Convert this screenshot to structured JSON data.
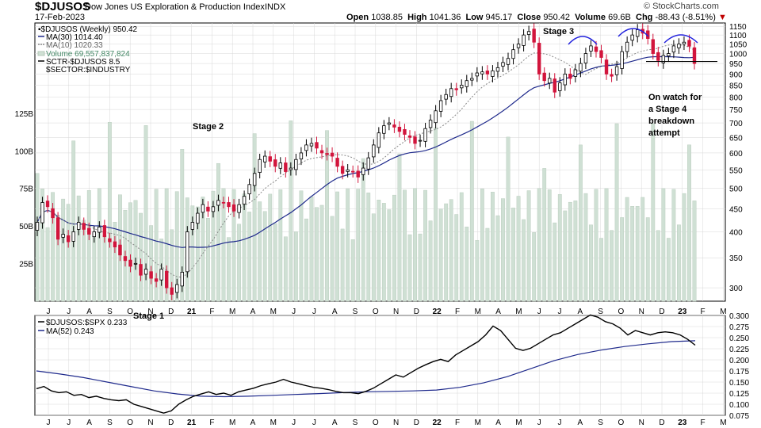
{
  "header": {
    "symbol": "$DJUSOS",
    "name": "Dow Jones US Exploration & Production Index",
    "exchange": "INDX",
    "date": "17-Feb-2023",
    "copyright": "© StockCharts.com",
    "quote": {
      "open_label": "Open",
      "open": "1038.85",
      "high_label": "High",
      "high": "1041.36",
      "low_label": "Low",
      "low": "945.17",
      "close_label": "Close",
      "close": "950.42",
      "volume_label": "Volume",
      "volume": "69.6B",
      "chg_label": "Chg",
      "chg": "-88.43 (-8.51%)",
      "chg_arrow": "▼"
    }
  },
  "legend_main": [
    "▪$DJUSOS (Weekly) 950.42",
    "MA(30) 1014.40",
    "MA(10) 1020.33",
    "Volume 69,557,837,824",
    "SCTR-$DJUSOS 8.5",
    "$SECTOR:$INDUSTRY"
  ],
  "legend_rs": [
    "$DJUSOS:$SPX 0.233",
    "MA(52) 0.243"
  ],
  "annotations": [
    {
      "text": "Stage 1"
    },
    {
      "text": "Stage 2"
    },
    {
      "text": "Stage 3"
    },
    {
      "text": "On watch for\na Stage 4\nbreakdown\nattempt"
    }
  ],
  "colors": {
    "up": "#000000",
    "down": "#d2153c",
    "ma30": "#1f2a8c",
    "ma10": "#888888",
    "volume": "#cfe0d4",
    "volume_edge": "#b4c8b8",
    "grid": "#d8d8d8",
    "arc": "#2222dd",
    "rs_ma": "#1f2a8c",
    "chg": "#c00000"
  },
  "chart_data": [
    {
      "type": "candlestick",
      "title": "$DJUSOS Dow Jones US Exploration & Production Index INDX",
      "x_axis": {
        "tick_labels": [
          "J",
          "J",
          "A",
          "S",
          "O",
          "N",
          "D",
          "21",
          "F",
          "M",
          "A",
          "M",
          "J",
          "J",
          "A",
          "S",
          "O",
          "N",
          "D",
          "22",
          "F",
          "M",
          "A",
          "M",
          "J",
          "J",
          "A",
          "S",
          "O",
          "N",
          "D",
          "23",
          "F",
          "M"
        ]
      },
      "y_axis": {
        "scale": "log",
        "range": [
          280,
          1170
        ],
        "ticks": [
          300,
          350,
          400,
          450,
          500,
          550,
          600,
          650,
          700,
          750,
          800,
          850,
          900,
          950,
          1000,
          1050,
          1100,
          1150
        ]
      },
      "volume_axis": {
        "ticks": [
          "25B",
          "50B",
          "75B",
          "100B",
          "125B"
        ],
        "range": [
          0,
          185
        ]
      },
      "weekly_close": [
        [
          420,
          465,
          455,
          430,
          385,
          395,
          380,
          400,
          420,
          405,
          395,
          400,
          410,
          390,
          380,
          370,
          355,
          345,
          335,
          340,
          320,
          330,
          315,
          310,
          330,
          300,
          290,
          305,
          325
        ],
        [
          400,
          420,
          440,
          460,
          445,
          455,
          470,
          465,
          455,
          445,
          460,
          480,
          510,
          540,
          580,
          590,
          575,
          560,
          570,
          545,
          555,
          580,
          600,
          625,
          630,
          615,
          600,
          595,
          590
        ],
        [
          560,
          540,
          550,
          545,
          530,
          555,
          585,
          625,
          665,
          690,
          700,
          685,
          670,
          660,
          650,
          630,
          640,
          680,
          710,
          745,
          785,
          810,
          835,
          830,
          850,
          870,
          880,
          905,
          910
        ],
        [
          900,
          915,
          930,
          955,
          975,
          1020,
          1050,
          1100,
          1120,
          1060,
          900,
          870,
          880,
          820,
          860,
          900,
          880,
          920,
          950,
          1000,
          1040,
          1010,
          980,
          900,
          890,
          935,
          1010,
          1060,
          1100,
          1130,
          1110,
          1080,
          1000,
          965,
          990,
          1000,
          1040,
          1050,
          1060,
          1038,
          950
        ]
      ],
      "series": [
        {
          "name": "MA(30)",
          "value": 1014.4
        },
        {
          "name": "MA(10)",
          "value": 1020.33
        }
      ],
      "annotations": [
        {
          "text": "Stage 1",
          "near": "Nov 2020 low"
        },
        {
          "text": "Stage 2",
          "near": "early 2021 advance"
        },
        {
          "text": "Stage 3",
          "near": "mid 2022 top"
        },
        {
          "text": "On watch for a Stage 4 breakdown attempt",
          "near": "Jan-Feb 2023"
        }
      ]
    },
    {
      "type": "line",
      "title": "$DJUSOS:$SPX relative strength",
      "y_axis": {
        "range": [
          0.075,
          0.3
        ],
        "ticks": [
          0.075,
          0.1,
          0.125,
          0.15,
          0.175,
          0.2,
          0.225,
          0.25,
          0.275,
          0.3
        ]
      },
      "series": [
        {
          "name": "$DJUSOS:$SPX",
          "last": 0.233
        },
        {
          "name": "MA(52)",
          "last": 0.243
        }
      ],
      "rs_values": [
        0.135,
        0.14,
        0.13,
        0.126,
        0.128,
        0.12,
        0.122,
        0.115,
        0.118,
        0.113,
        0.11,
        0.108,
        0.11,
        0.1,
        0.095,
        0.09,
        0.085,
        0.08,
        0.085,
        0.1,
        0.11,
        0.118,
        0.123,
        0.128,
        0.122,
        0.125,
        0.12,
        0.128,
        0.132,
        0.136,
        0.142,
        0.146,
        0.15,
        0.156,
        0.15,
        0.146,
        0.142,
        0.138,
        0.136,
        0.133,
        0.129,
        0.126,
        0.126,
        0.124,
        0.129,
        0.136,
        0.146,
        0.156,
        0.166,
        0.161,
        0.171,
        0.181,
        0.189,
        0.196,
        0.201,
        0.196,
        0.211,
        0.221,
        0.231,
        0.241,
        0.256,
        0.276,
        0.266,
        0.246,
        0.226,
        0.221,
        0.226,
        0.236,
        0.246,
        0.256,
        0.261,
        0.271,
        0.281,
        0.291,
        0.301,
        0.296,
        0.286,
        0.281,
        0.271,
        0.256,
        0.266,
        0.261,
        0.256,
        0.261,
        0.263,
        0.261,
        0.256,
        0.246,
        0.233
      ],
      "ma_values": [
        0.175,
        0.168,
        0.16,
        0.15,
        0.14,
        0.13,
        0.123,
        0.118,
        0.117,
        0.118,
        0.12,
        0.122,
        0.124,
        0.126,
        0.128,
        0.129,
        0.13,
        0.132,
        0.138,
        0.148,
        0.162,
        0.18,
        0.198,
        0.212,
        0.222,
        0.23,
        0.236,
        0.241,
        0.243
      ]
    }
  ]
}
